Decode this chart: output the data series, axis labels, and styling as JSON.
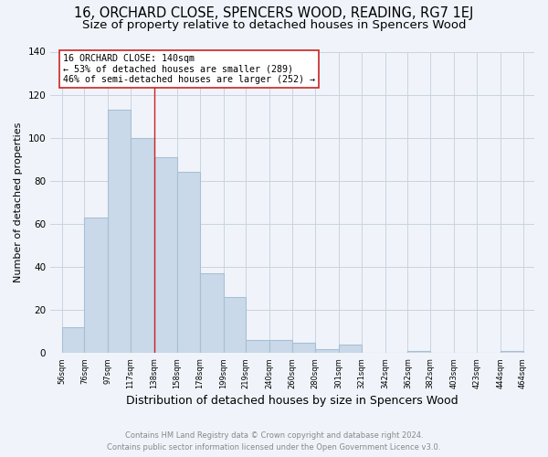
{
  "title": "16, ORCHARD CLOSE, SPENCERS WOOD, READING, RG7 1EJ",
  "subtitle": "Size of property relative to detached houses in Spencers Wood",
  "xlabel": "Distribution of detached houses by size in Spencers Wood",
  "ylabel": "Number of detached properties",
  "bar_left_edges": [
    56,
    76,
    97,
    117,
    138,
    158,
    178,
    199,
    219,
    240,
    260,
    280,
    301,
    321,
    342,
    362,
    382,
    403,
    423,
    444
  ],
  "bar_widths": [
    20,
    21,
    20,
    21,
    20,
    20,
    21,
    20,
    21,
    20,
    20,
    21,
    20,
    21,
    20,
    20,
    21,
    20,
    21,
    20
  ],
  "bar_heights": [
    12,
    63,
    113,
    100,
    91,
    84,
    37,
    26,
    6,
    6,
    5,
    2,
    4,
    0,
    0,
    1,
    0,
    0,
    0,
    1
  ],
  "bar_color": "#c9d9e9",
  "bar_edge_color": "#a8bfd4",
  "tick_labels": [
    "56sqm",
    "76sqm",
    "97sqm",
    "117sqm",
    "138sqm",
    "158sqm",
    "178sqm",
    "199sqm",
    "219sqm",
    "240sqm",
    "260sqm",
    "280sqm",
    "301sqm",
    "321sqm",
    "342sqm",
    "362sqm",
    "382sqm",
    "403sqm",
    "423sqm",
    "444sqm",
    "464sqm"
  ],
  "tick_positions": [
    56,
    76,
    97,
    117,
    138,
    158,
    178,
    199,
    219,
    240,
    260,
    280,
    301,
    321,
    342,
    362,
    382,
    403,
    423,
    444,
    464
  ],
  "ylim": [
    0,
    140
  ],
  "yticks": [
    0,
    20,
    40,
    60,
    80,
    100,
    120,
    140
  ],
  "xlim_left": 46,
  "xlim_right": 474,
  "property_line_x": 138,
  "annotation_title": "16 ORCHARD CLOSE: 140sqm",
  "annotation_line1": "← 53% of detached houses are smaller (289)",
  "annotation_line2": "46% of semi-detached houses are larger (252) →",
  "footer_line1": "Contains HM Land Registry data © Crown copyright and database right 2024.",
  "footer_line2": "Contains public sector information licensed under the Open Government Licence v3.0.",
  "background_color": "#f0f4fa",
  "grid_color": "#c8d4e0",
  "title_fontsize": 10.5,
  "subtitle_fontsize": 9.5,
  "ylabel_fontsize": 8,
  "xlabel_fontsize": 9
}
